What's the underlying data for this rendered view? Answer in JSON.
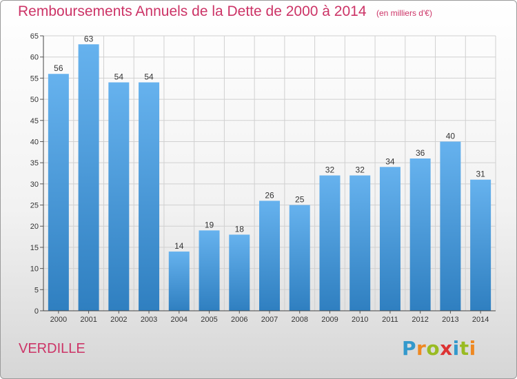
{
  "chart_data": {
    "type": "bar",
    "title": "Remboursements Annuels de la Dette de 2000 à 2014",
    "subtitle": "(en milliers d'€)",
    "categories": [
      "2000",
      "2001",
      "2002",
      "2003",
      "2004",
      "2005",
      "2006",
      "2007",
      "2008",
      "2009",
      "2010",
      "2011",
      "2012",
      "2013",
      "2014"
    ],
    "values": [
      56,
      63,
      54,
      54,
      14,
      19,
      18,
      26,
      25,
      32,
      32,
      34,
      36,
      40,
      31
    ],
    "ylim": [
      0,
      65
    ],
    "yticks": [
      0,
      5,
      10,
      15,
      20,
      25,
      30,
      35,
      40,
      45,
      50,
      55,
      60,
      65
    ],
    "xlabel": "",
    "ylabel": "",
    "grid": true,
    "bar_color_top": "#66b2ee",
    "bar_color_bottom": "#2f7fc0",
    "grid_color": "#d0d0d0"
  },
  "commune": "VERDILLE",
  "brand": {
    "letters": [
      "P",
      "r",
      "o",
      "x",
      "i",
      "t",
      "i"
    ],
    "colors": [
      "#3399cc",
      "#ee8822",
      "#99bb22",
      "#dd3333",
      "#3399cc",
      "#99bb22",
      "#ee8822"
    ]
  }
}
